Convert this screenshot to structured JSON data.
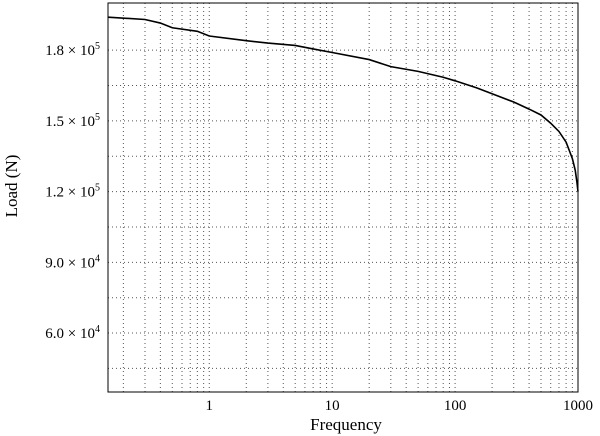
{
  "chart_data": {
    "type": "line",
    "title": "",
    "xlabel": "Frequency",
    "ylabel": "Load (N)",
    "x_scale": "log",
    "xlim": [
      0.15,
      1000
    ],
    "ylim": [
      35000,
      200000
    ],
    "grid": true,
    "x_ticks": [
      {
        "value": 1,
        "label": "1"
      },
      {
        "value": 10,
        "label": "10"
      },
      {
        "value": 100,
        "label": "100"
      },
      {
        "value": 1000,
        "label": "1000"
      }
    ],
    "y_ticks": [
      {
        "value": 60000,
        "mantissa": "6.0",
        "exp": "4"
      },
      {
        "value": 90000,
        "mantissa": "9.0",
        "exp": "4"
      },
      {
        "value": 120000,
        "mantissa": "1.2",
        "exp": "5"
      },
      {
        "value": 150000,
        "mantissa": "1.5",
        "exp": "5"
      },
      {
        "value": 180000,
        "mantissa": "1.8",
        "exp": "5"
      }
    ],
    "y_minor_grid": [
      45000,
      75000,
      105000,
      135000,
      165000
    ],
    "series": [
      {
        "x": [
          0.15,
          0.3,
          0.4,
          0.5,
          0.8,
          1,
          2,
          3,
          5,
          7,
          10,
          20,
          30,
          50,
          80,
          100,
          150,
          200,
          300,
          400,
          500,
          600,
          700,
          800,
          900,
          950,
          980,
          1000
        ],
        "y": [
          194000,
          193000,
          191500,
          189500,
          188000,
          186000,
          184000,
          183000,
          182000,
          180500,
          179000,
          176000,
          173000,
          171000,
          168500,
          167000,
          164000,
          161500,
          158000,
          155000,
          152500,
          149000,
          145500,
          141000,
          134000,
          129000,
          124000,
          120000
        ]
      }
    ]
  }
}
